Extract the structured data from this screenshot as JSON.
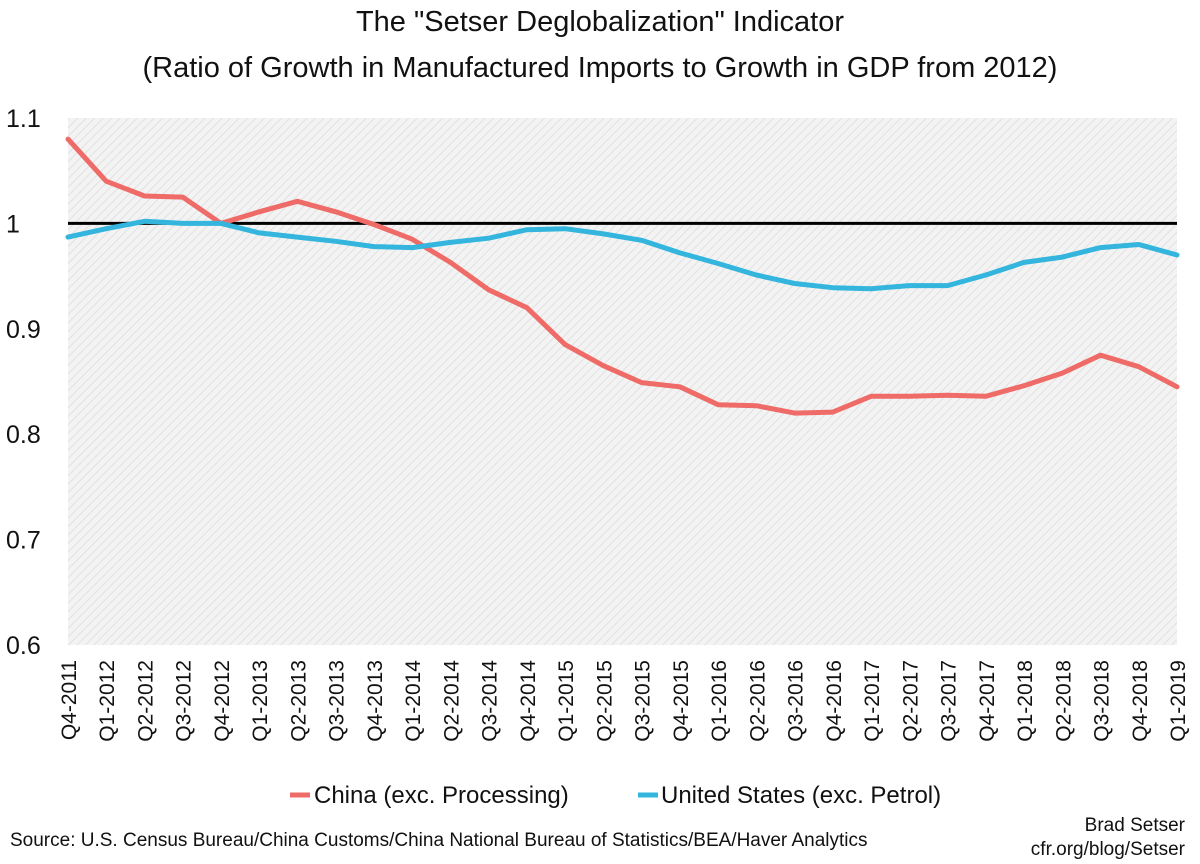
{
  "chart_data": {
    "type": "line",
    "title": "The \"Setser Deglobalization\" Indicator",
    "subtitle": "(Ratio of Growth in Manufactured Imports to Growth in GDP from 2012)",
    "xlabel": "",
    "ylabel": "",
    "ylim": [
      0.6,
      1.1
    ],
    "yticks": [
      "1.1",
      "1",
      "0.9",
      "0.8",
      "0.7",
      "0.6"
    ],
    "ytick_values": [
      1.1,
      1.0,
      0.9,
      0.8,
      0.7,
      0.6
    ],
    "grid": false,
    "background": "hatched light gray",
    "reference_line": {
      "y": 1.0,
      "color": "#000000"
    },
    "categories": [
      "Q4-2011",
      "Q1-2012",
      "Q2-2012",
      "Q3-2012",
      "Q4-2012",
      "Q1-2013",
      "Q2-2013",
      "Q3-2013",
      "Q4-2013",
      "Q1-2014",
      "Q2-2014",
      "Q3-2014",
      "Q4-2014",
      "Q1-2015",
      "Q2-2015",
      "Q3-2015",
      "Q4-2015",
      "Q1-2016",
      "Q2-2016",
      "Q3-2016",
      "Q4-2016",
      "Q1-2017",
      "Q2-2017",
      "Q3-2017",
      "Q4-2017",
      "Q1-2018",
      "Q2-2018",
      "Q3-2018",
      "Q4-2018",
      "Q1-2019"
    ],
    "series": [
      {
        "name": "China (exc. Processing)",
        "color": "#ee6b67",
        "values": [
          1.08,
          1.04,
          1.026,
          1.025,
          1.0,
          1.011,
          1.021,
          1.011,
          0.999,
          0.985,
          0.963,
          0.937,
          0.92,
          0.885,
          0.865,
          0.849,
          0.845,
          0.828,
          0.827,
          0.82,
          0.821,
          0.836,
          0.836,
          0.837,
          0.836,
          0.846,
          0.858,
          0.875,
          0.864,
          0.845
        ]
      },
      {
        "name": "United States (exc. Petrol)",
        "color": "#33b5dd",
        "values": [
          0.987,
          0.995,
          1.002,
          1.0,
          1.0,
          0.991,
          0.987,
          0.983,
          0.978,
          0.977,
          0.982,
          0.986,
          0.994,
          0.995,
          0.99,
          0.984,
          0.972,
          0.962,
          0.951,
          0.943,
          0.939,
          0.938,
          0.941,
          0.941,
          0.951,
          0.963,
          0.968,
          0.977,
          0.98,
          0.97
        ]
      }
    ],
    "legend_position": "bottom"
  },
  "footer": {
    "source": "Source: U.S. Census Bureau/China Customs/China National Bureau of Statistics/BEA/Haver Analytics",
    "author": "Brad Setser",
    "site": "cfr.org/blog/Setser"
  }
}
